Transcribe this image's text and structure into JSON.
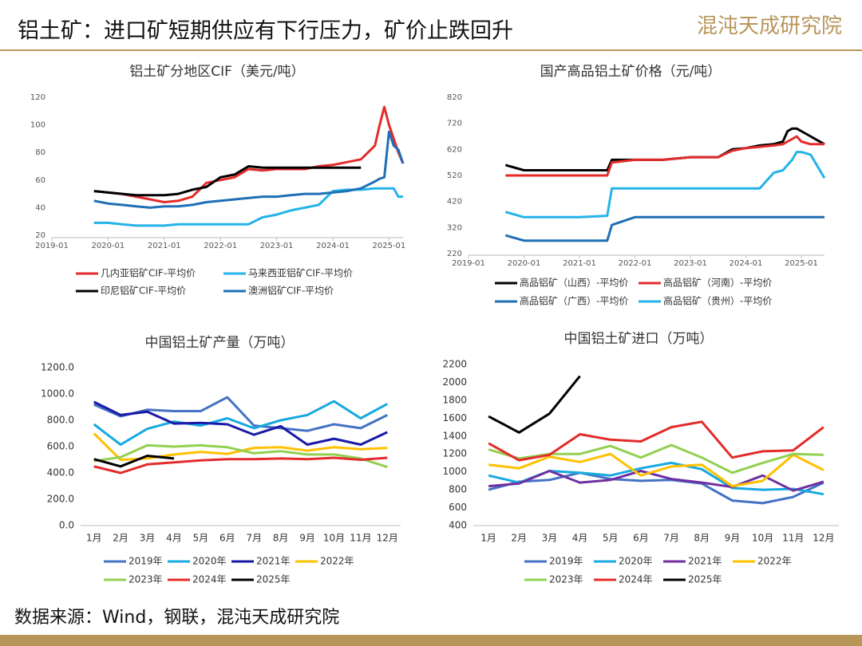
{
  "header": {
    "title": "铝土矿：进口矿短期供应有下行压力，矿价止跌回升",
    "logo": "混沌天成研究院"
  },
  "source": "数据来源：Wind，钢联，混沌天成研究院",
  "chart_data": [
    {
      "type": "line",
      "title": "铝土矿分地区CIF（美元/吨）",
      "x": [
        "2019-10",
        "2020-01",
        "2020-04",
        "2020-07",
        "2020-10",
        "2021-01",
        "2021-04",
        "2021-07",
        "2021-10",
        "2022-01",
        "2022-04",
        "2022-07",
        "2022-10",
        "2023-01",
        "2023-04",
        "2023-07",
        "2023-10",
        "2024-01",
        "2024-04",
        "2024-07",
        "2024-10",
        "2024-11",
        "2024-12",
        "2025-01",
        "2025-02",
        "2025-03",
        "2025-04"
      ],
      "xlim": [
        "2019-01",
        "2025-04"
      ],
      "xticks": [
        "2019-01",
        "2020-01",
        "2021-01",
        "2022-01",
        "2023-01",
        "2024-01",
        "2025-01"
      ],
      "ylim": [
        20,
        120
      ],
      "yticks": [
        20,
        40,
        60,
        80,
        100,
        120
      ],
      "series": [
        {
          "name": "几内亚铝矿CIF-平均价",
          "color": "#e32b2b",
          "values": [
            52,
            51,
            50,
            48,
            46,
            44,
            45,
            48,
            58,
            60,
            62,
            68,
            67,
            68,
            68,
            68,
            70,
            71,
            73,
            75,
            85,
            100,
            113,
            100,
            90,
            80,
            72
          ]
        },
        {
          "name": "马来西亚铝矿CIF-平均价",
          "color": "#25b3e8",
          "values": [
            29,
            29,
            28,
            27,
            27,
            27,
            28,
            28,
            28,
            28,
            28,
            28,
            33,
            35,
            38,
            40,
            42,
            52,
            53,
            53,
            54,
            54,
            54,
            54,
            54,
            48,
            48
          ]
        },
        {
          "name": "印尼铝矿CIF-平均价",
          "color": "#000000",
          "values": [
            52,
            51,
            50,
            49,
            49,
            49,
            50,
            53,
            55,
            62,
            64,
            70,
            69,
            69,
            69,
            69,
            69,
            69,
            69,
            69,
            null,
            null,
            null,
            null,
            null,
            null,
            null
          ]
        },
        {
          "name": "澳洲铝矿CIF-平均价",
          "color": "#1f6fb5",
          "values": [
            45,
            43,
            42,
            41,
            40,
            41,
            41,
            42,
            44,
            45,
            46,
            47,
            48,
            48,
            49,
            50,
            50,
            51,
            52,
            54,
            59,
            61,
            62,
            95,
            85,
            82,
            72
          ]
        }
      ]
    },
    {
      "type": "line",
      "title": "国产高品铝土矿价格（元/吨）",
      "x": [
        "2019-09",
        "2020-01",
        "2020-07",
        "2021-01",
        "2021-07",
        "2021-08",
        "2022-01",
        "2022-07",
        "2023-01",
        "2023-07",
        "2023-10",
        "2024-01",
        "2024-04",
        "2024-07",
        "2024-09",
        "2024-10",
        "2024-11",
        "2024-12",
        "2025-01",
        "2025-03",
        "2025-06"
      ],
      "xlim": [
        "2019-01",
        "2025-06"
      ],
      "xticks": [
        "2019-01",
        "2020-01",
        "2021-01",
        "2022-01",
        "2023-01",
        "2024-01",
        "2025-01"
      ],
      "ylim": [
        220,
        820
      ],
      "yticks": [
        220,
        320,
        420,
        520,
        620,
        720,
        820
      ],
      "series": [
        {
          "name": "高品铝矿（山西）-平均价",
          "color": "#000000",
          "values": [
            560,
            540,
            540,
            540,
            540,
            580,
            580,
            580,
            590,
            590,
            620,
            625,
            635,
            640,
            650,
            690,
            700,
            700,
            690,
            670,
            640
          ]
        },
        {
          "name": "高品铝矿（河南）-平均价",
          "color": "#e32b2b",
          "values": [
            520,
            520,
            520,
            520,
            520,
            570,
            580,
            580,
            590,
            590,
            615,
            625,
            630,
            635,
            640,
            650,
            660,
            670,
            650,
            640,
            640
          ]
        },
        {
          "name": "高品铝矿（广西）-平均价",
          "color": "#1f6fb5",
          "values": [
            290,
            270,
            270,
            270,
            270,
            330,
            360,
            360,
            360,
            360,
            360,
            360,
            360,
            360,
            360,
            360,
            360,
            360,
            360,
            360,
            360
          ]
        },
        {
          "name": "高品铝矿（贵州）-平均价",
          "color": "#25b3e8",
          "values": [
            380,
            360,
            360,
            360,
            365,
            470,
            470,
            470,
            470,
            470,
            470,
            470,
            470,
            530,
            540,
            560,
            580,
            610,
            610,
            600,
            510
          ]
        }
      ]
    },
    {
      "type": "line",
      "title": "中国铝土矿产量（万吨）",
      "categories": [
        "1月",
        "2月",
        "3月",
        "4月",
        "5月",
        "6月",
        "7月",
        "8月",
        "9月",
        "10月",
        "11月",
        "12月"
      ],
      "ylim": [
        0,
        1200
      ],
      "yticks": [
        {
          "value": 0,
          "label": "0.0"
        },
        {
          "value": 200,
          "label": "200.0"
        },
        {
          "value": 400,
          "label": "400.0"
        },
        {
          "value": 600,
          "label": "600.0"
        },
        {
          "value": 800,
          "label": "800.0"
        },
        {
          "value": 1000,
          "label": "1000.0"
        },
        {
          "value": 1200,
          "label": "1200.0"
        }
      ],
      "series": [
        {
          "name": "2019年",
          "color": "#4472c4",
          "values": [
            920,
            830,
            880,
            870,
            870,
            975,
            760,
            740,
            720,
            770,
            740,
            840
          ]
        },
        {
          "name": "2020年",
          "color": "#17a9e0",
          "values": [
            770,
            615,
            735,
            790,
            760,
            815,
            740,
            800,
            840,
            945,
            815,
            925
          ]
        },
        {
          "name": "2021年",
          "color": "#1a1aa6",
          "values": [
            940,
            840,
            865,
            775,
            780,
            770,
            690,
            755,
            615,
            660,
            615,
            710
          ]
        },
        {
          "name": "2022年",
          "color": "#ffc000",
          "values": [
            700,
            500,
            510,
            540,
            560,
            545,
            590,
            595,
            570,
            595,
            580,
            590
          ]
        },
        {
          "name": "2023年",
          "color": "#92d050",
          "values": [
            490,
            520,
            610,
            600,
            610,
            595,
            550,
            565,
            540,
            540,
            510,
            445
          ]
        },
        {
          "name": "2024年",
          "color": "#e32b2b",
          "values": [
            450,
            400,
            465,
            480,
            495,
            505,
            505,
            510,
            505,
            515,
            500,
            515
          ]
        },
        {
          "name": "2025年",
          "color": "#000000",
          "values": [
            505,
            450,
            530,
            510,
            null,
            null,
            null,
            null,
            null,
            null,
            null,
            null
          ]
        }
      ]
    },
    {
      "type": "line",
      "title": "中国铝土矿进口（万吨）",
      "categories": [
        "1月",
        "2月",
        "3月",
        "4月",
        "5月",
        "6月",
        "7月",
        "8月",
        "9月",
        "10月",
        "11月",
        "12月"
      ],
      "ylim": [
        400,
        2200
      ],
      "yticks": [
        400,
        600,
        800,
        1000,
        1200,
        1400,
        1600,
        1800,
        2000,
        2200
      ],
      "series": [
        {
          "name": "2019年",
          "color": "#4472c4",
          "values": [
            800,
            890,
            910,
            990,
            920,
            900,
            910,
            870,
            680,
            650,
            720,
            880
          ]
        },
        {
          "name": "2020年",
          "color": "#17a9e0",
          "values": [
            960,
            880,
            1010,
            990,
            960,
            1040,
            1100,
            1030,
            820,
            800,
            810,
            750
          ]
        },
        {
          "name": "2021年",
          "color": "#7030a0",
          "values": [
            840,
            870,
            1010,
            880,
            910,
            1010,
            920,
            880,
            830,
            960,
            790,
            890
          ]
        },
        {
          "name": "2022年",
          "color": "#ffc000",
          "values": [
            1080,
            1040,
            1170,
            1110,
            1200,
            960,
            1060,
            1080,
            840,
            900,
            1190,
            1020
          ]
        },
        {
          "name": "2023年",
          "color": "#92d050",
          "values": [
            1250,
            1150,
            1200,
            1200,
            1290,
            1160,
            1300,
            1160,
            990,
            1100,
            1200,
            1190
          ]
        },
        {
          "name": "2024年",
          "color": "#e32b2b",
          "values": [
            1320,
            1130,
            1190,
            1420,
            1360,
            1340,
            1500,
            1560,
            1160,
            1230,
            1240,
            1500
          ]
        },
        {
          "name": "2025年",
          "color": "#000000",
          "values": [
            1620,
            1440,
            1650,
            2070,
            null,
            null,
            null,
            null,
            null,
            null,
            null,
            null
          ]
        }
      ]
    }
  ]
}
